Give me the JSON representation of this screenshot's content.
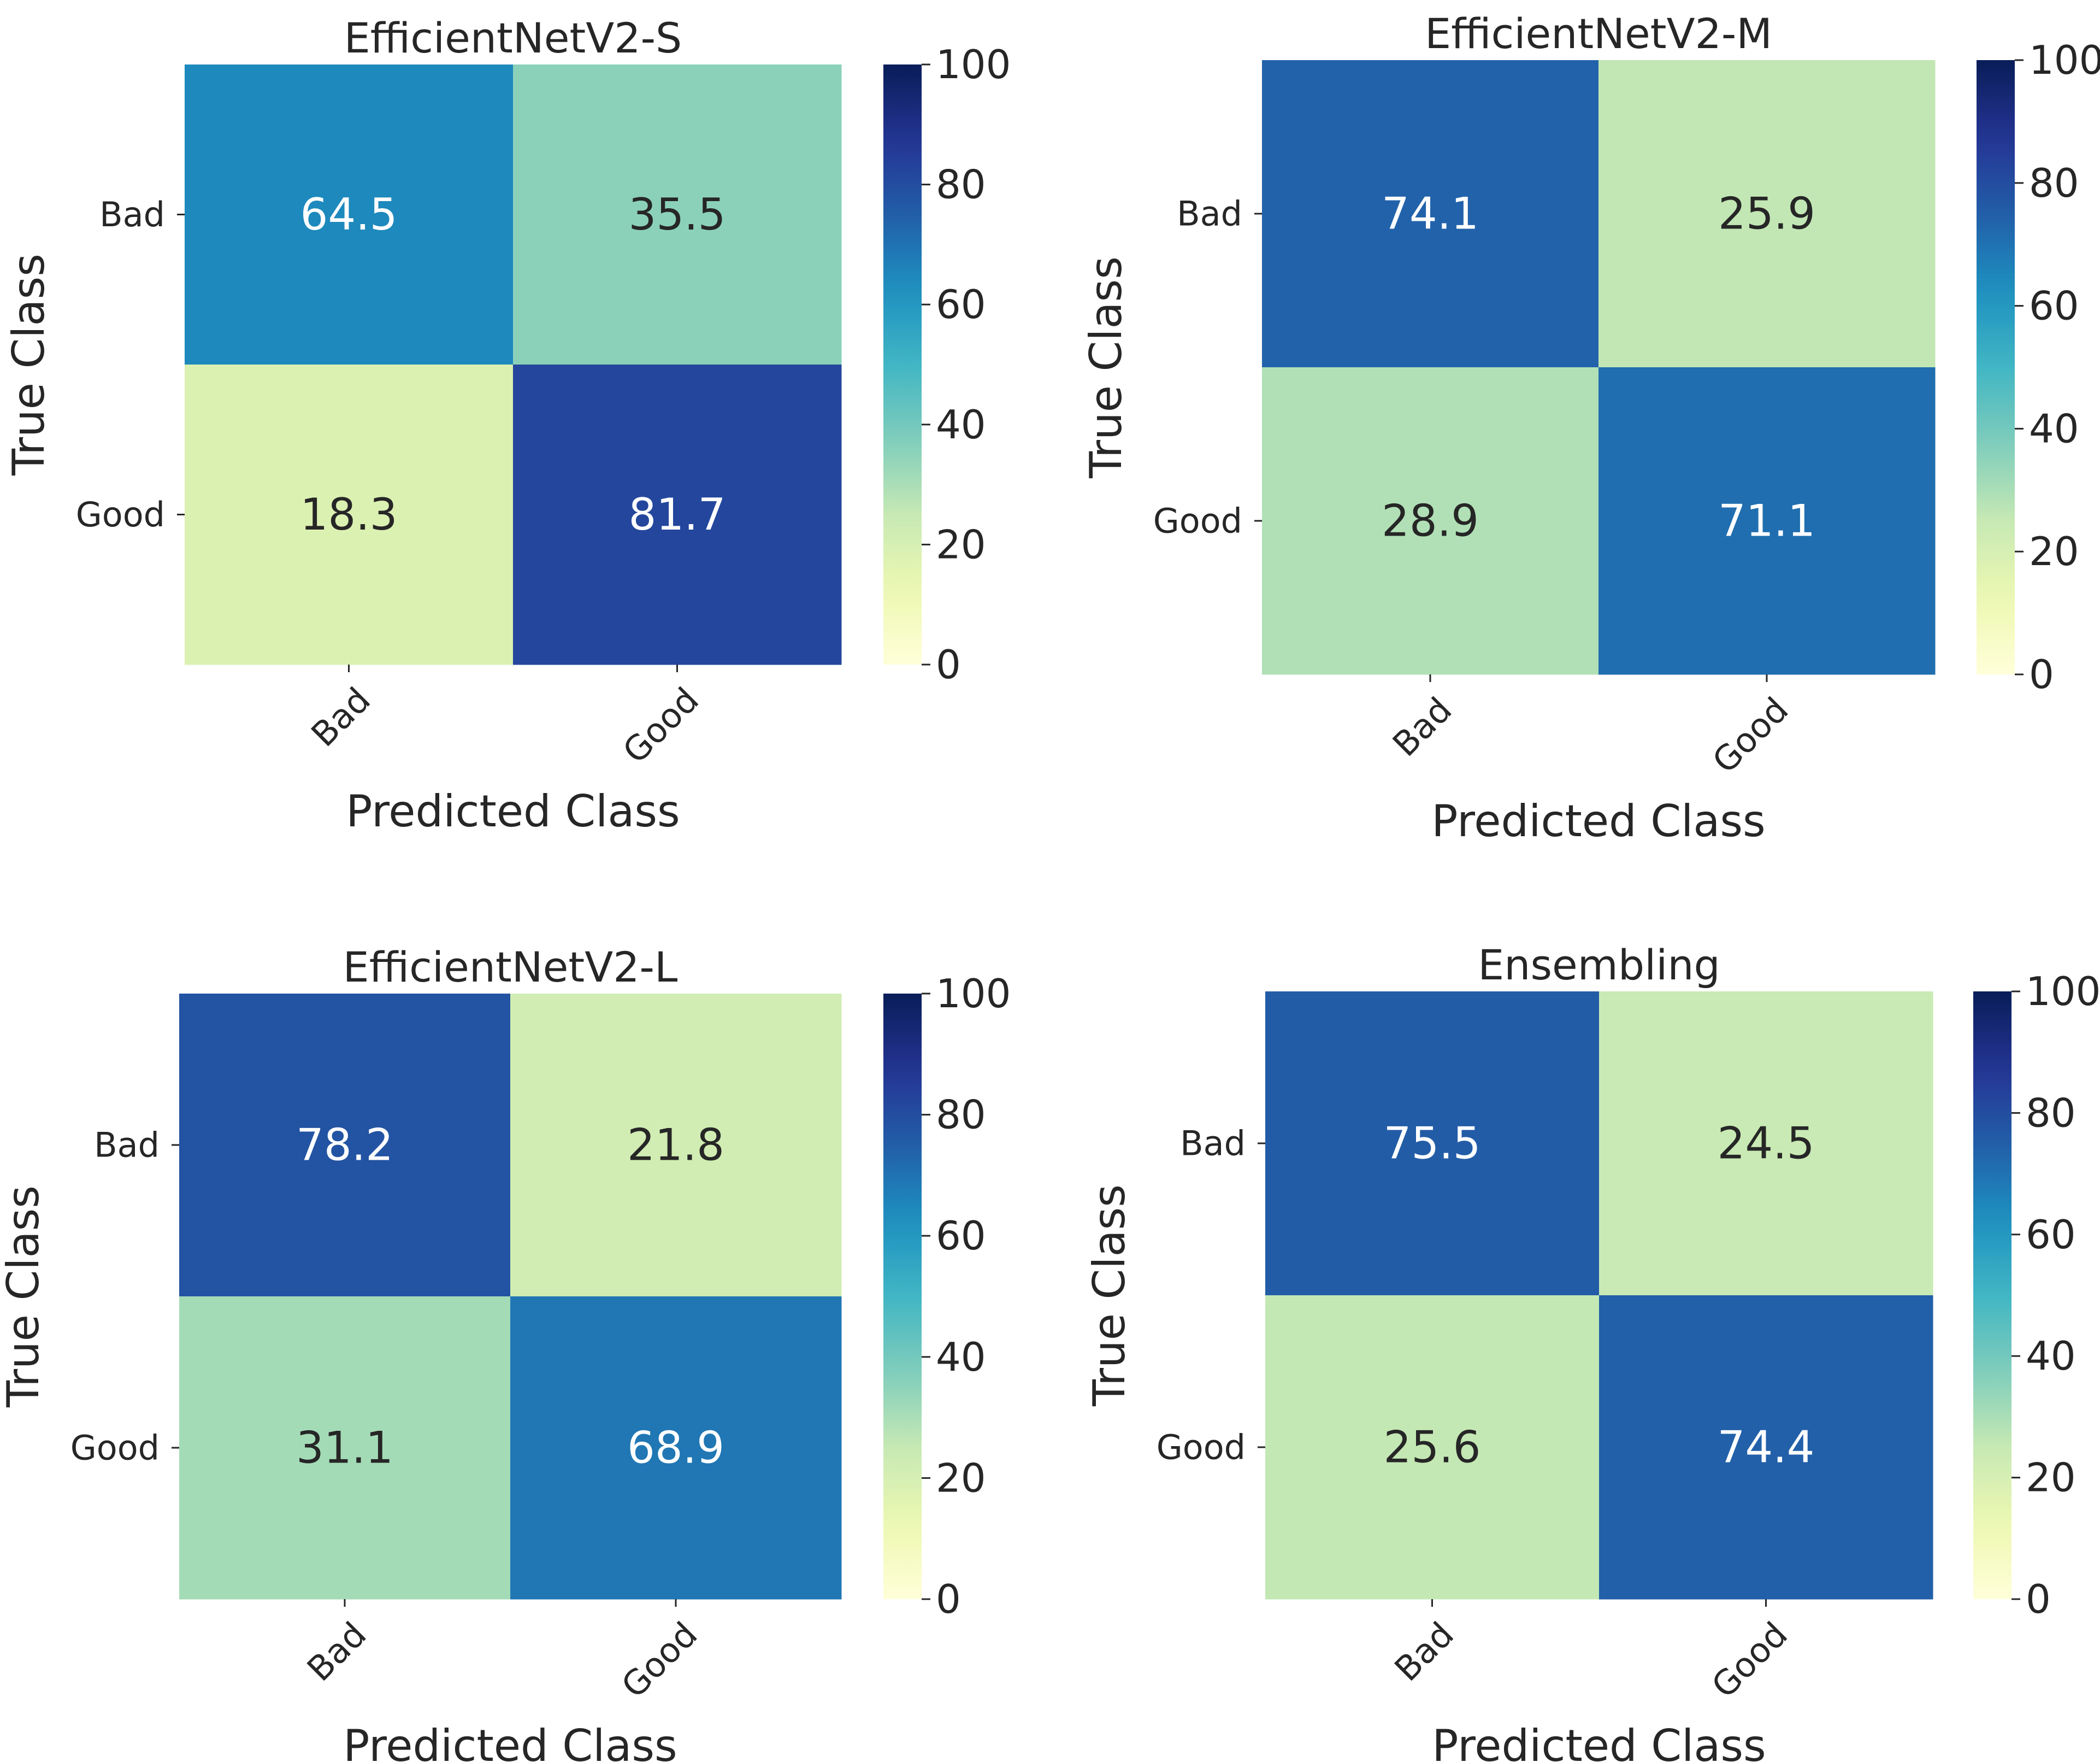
{
  "chart_data": [
    {
      "type": "heatmap",
      "title": "EfficientNetV2-S",
      "xlabel": "Predicted Class",
      "ylabel": "True Class",
      "x_categories": [
        "Bad",
        "Good"
      ],
      "y_categories": [
        "Bad",
        "Good"
      ],
      "values": [
        [
          64.5,
          35.5
        ],
        [
          18.3,
          81.7
        ]
      ],
      "value_labels": [
        [
          "64.5",
          "35.5"
        ],
        [
          "18.3",
          "81.7"
        ]
      ],
      "colorbar": {
        "range": [
          0,
          100
        ],
        "ticks": [
          "0",
          "20",
          "40",
          "60",
          "80",
          "100"
        ],
        "colormap": "YlGnBu"
      }
    },
    {
      "type": "heatmap",
      "title": "EfficientNetV2-M",
      "xlabel": "Predicted Class",
      "ylabel": "True Class",
      "x_categories": [
        "Bad",
        "Good"
      ],
      "y_categories": [
        "Bad",
        "Good"
      ],
      "values": [
        [
          74.1,
          25.9
        ],
        [
          28.9,
          71.1
        ]
      ],
      "value_labels": [
        [
          "74.1",
          "25.9"
        ],
        [
          "28.9",
          "71.1"
        ]
      ],
      "colorbar": {
        "range": [
          0,
          100
        ],
        "ticks": [
          "0",
          "20",
          "40",
          "60",
          "80",
          "100"
        ],
        "colormap": "YlGnBu"
      }
    },
    {
      "type": "heatmap",
      "title": "EfficientNetV2-L",
      "xlabel": "Predicted Class",
      "ylabel": "True Class",
      "x_categories": [
        "Bad",
        "Good"
      ],
      "y_categories": [
        "Bad",
        "Good"
      ],
      "values": [
        [
          78.2,
          21.8
        ],
        [
          31.1,
          68.9
        ]
      ],
      "value_labels": [
        [
          "78.2",
          "21.8"
        ],
        [
          "31.1",
          "68.9"
        ]
      ],
      "colorbar": {
        "range": [
          0,
          100
        ],
        "ticks": [
          "0",
          "20",
          "40",
          "60",
          "80",
          "100"
        ],
        "colormap": "YlGnBu"
      }
    },
    {
      "type": "heatmap",
      "title": "Ensembling",
      "xlabel": "Predicted Class",
      "ylabel": "True Class",
      "x_categories": [
        "Bad",
        "Good"
      ],
      "y_categories": [
        "Bad",
        "Good"
      ],
      "values": [
        [
          75.5,
          24.5
        ],
        [
          25.6,
          74.4
        ]
      ],
      "value_labels": [
        [
          "75.5",
          "24.5"
        ],
        [
          "25.6",
          "74.4"
        ]
      ],
      "colorbar": {
        "range": [
          0,
          100
        ],
        "ticks": [
          "0",
          "20",
          "40",
          "60",
          "80",
          "100"
        ],
        "colormap": "YlGnBu"
      }
    }
  ]
}
